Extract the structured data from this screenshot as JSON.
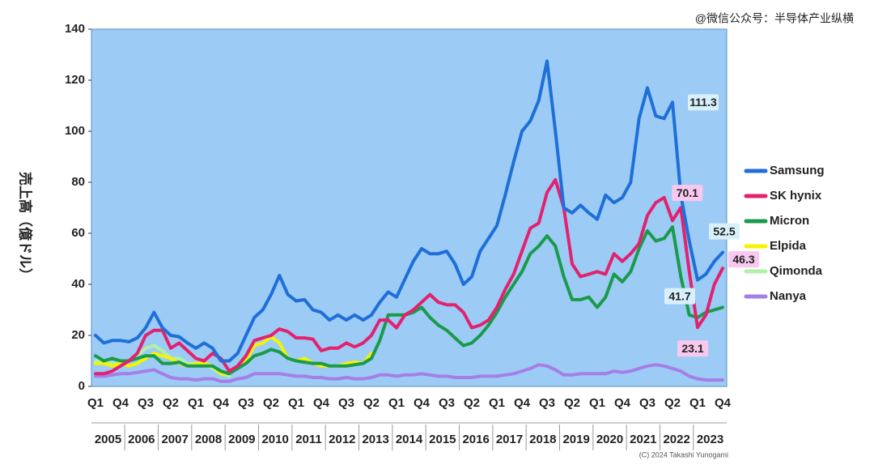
{
  "chart_data": {
    "type": "line",
    "y_label": "売上高（億ドル）",
    "watermark": "@微信公众号：半导体产业纵横",
    "credit": "(C) 2024 Takashi Yunogami",
    "background": "#9ccbf6",
    "ylim": [
      0,
      140
    ],
    "yticks": [
      0,
      20,
      40,
      60,
      80,
      100,
      120,
      140
    ],
    "grid": false,
    "categories": [
      "Q1",
      null,
      null,
      "Q4",
      null,
      null,
      "Q3",
      null,
      null,
      "Q2",
      null,
      null,
      "Q1",
      null,
      null,
      "Q4",
      null,
      null,
      "Q3",
      null,
      null,
      "Q2",
      null,
      null,
      "Q1",
      null,
      null,
      "Q4",
      null,
      null,
      "Q3",
      null,
      null,
      "Q2",
      null,
      null,
      "Q1",
      null,
      null,
      "Q4",
      null,
      null,
      "Q3",
      null,
      null,
      "Q2",
      null,
      null,
      "Q1",
      null,
      null,
      "Q4",
      null,
      null,
      "Q3",
      null,
      null,
      "Q2",
      null,
      null,
      "Q1",
      null,
      null,
      "Q4",
      null,
      null,
      "Q3",
      null,
      null,
      "Q2",
      null,
      null,
      "Q1",
      null,
      null,
      "Q4"
    ],
    "years": [
      "2005",
      "2006",
      "2007",
      "2008",
      "2009",
      "2010",
      "2011",
      "2012",
      "2013",
      "2014",
      "2015",
      "2016",
      "2017",
      "2018",
      "2019",
      "2020",
      "2021",
      "2022",
      "2023"
    ],
    "series": [
      {
        "name": "Samsung",
        "color": "#1f6fd8",
        "label_color": "#d8f0fb",
        "values": [
          20,
          17,
          18,
          18,
          17.5,
          19,
          23,
          29,
          23,
          20,
          19.5,
          17,
          15,
          17,
          15,
          10,
          10,
          13,
          20,
          27,
          30,
          36,
          43.5,
          36,
          33.5,
          34,
          30,
          29,
          26,
          28,
          26,
          28,
          26,
          28,
          33,
          37,
          35,
          42,
          49,
          54,
          52,
          52,
          53,
          48,
          40,
          43,
          53,
          58,
          63,
          75,
          88,
          100,
          104,
          112,
          127.5,
          100,
          70,
          68,
          71,
          68,
          65.5,
          75,
          72,
          74,
          80,
          105,
          117,
          106,
          105,
          111.3,
          75,
          57,
          41.7,
          44,
          49,
          52.5
        ],
        "value_labels": [
          null,
          null,
          null,
          null,
          null,
          null,
          null,
          null,
          null,
          null,
          null,
          null,
          null,
          null,
          null,
          null,
          null,
          null,
          null,
          null,
          null,
          null,
          null,
          null,
          null,
          null,
          null,
          null,
          null,
          null,
          null,
          null,
          null,
          null,
          null,
          null,
          null,
          null,
          null,
          null,
          null,
          null,
          null,
          null,
          null,
          null,
          null,
          null,
          null,
          null,
          null,
          null,
          null,
          null,
          null,
          null,
          null,
          null,
          null,
          null,
          null,
          null,
          null,
          null,
          null,
          null,
          null,
          null,
          null,
          "111.3",
          null,
          null,
          "41.7",
          null,
          null,
          "52.5"
        ]
      },
      {
        "name": "SK hynix",
        "color": "#e2226e",
        "label_color": "#f8c8ee",
        "values": [
          5,
          5,
          6,
          8,
          10,
          13,
          20,
          22,
          22,
          15,
          17,
          14,
          11,
          10,
          13,
          11,
          6,
          8,
          12,
          18,
          19,
          20,
          22.5,
          21.5,
          19,
          19,
          18.5,
          14,
          15,
          15,
          17,
          15.5,
          17,
          20,
          26,
          26,
          23,
          28,
          30,
          33,
          36,
          33,
          32,
          32,
          29,
          23,
          24,
          26,
          31,
          38,
          44,
          53,
          62,
          64,
          76,
          81,
          70,
          48,
          43,
          44,
          45,
          44,
          52,
          49,
          52,
          56,
          67,
          72,
          74,
          65,
          70.1,
          45,
          23.1,
          28,
          40,
          46.3
        ],
        "value_labels": [
          null,
          null,
          null,
          null,
          null,
          null,
          null,
          null,
          null,
          null,
          null,
          null,
          null,
          null,
          null,
          null,
          null,
          null,
          null,
          null,
          null,
          null,
          null,
          null,
          null,
          null,
          null,
          null,
          null,
          null,
          null,
          null,
          null,
          null,
          null,
          null,
          null,
          null,
          null,
          null,
          null,
          null,
          null,
          null,
          null,
          null,
          null,
          null,
          null,
          null,
          null,
          null,
          null,
          null,
          null,
          null,
          null,
          null,
          null,
          null,
          null,
          null,
          null,
          null,
          null,
          null,
          null,
          null,
          null,
          null,
          "70.1",
          null,
          "23.1",
          null,
          null,
          "46.3"
        ]
      },
      {
        "name": "Micron",
        "color": "#1b9a4b",
        "values": [
          12,
          10,
          11,
          10,
          10,
          11,
          12,
          12,
          9,
          9,
          9.5,
          8,
          8,
          8,
          8,
          6,
          5,
          7,
          9,
          12,
          13,
          14.5,
          13.5,
          11,
          10,
          9.5,
          9,
          9,
          8,
          8,
          8,
          8.5,
          9,
          11,
          18,
          28,
          28,
          28,
          29,
          31,
          27,
          24,
          22,
          19,
          16,
          17,
          20,
          24,
          29,
          35,
          40,
          45,
          52,
          55,
          59,
          55,
          43,
          34,
          34,
          35,
          31,
          35,
          44,
          41,
          45,
          54,
          61,
          57,
          58,
          62.5,
          43,
          28,
          27,
          29,
          30,
          31
        ]
      },
      {
        "name": "Elpida",
        "color": "#f4f400",
        "values": [
          9,
          9,
          8,
          9,
          8,
          9,
          11,
          13,
          12,
          11,
          9,
          8,
          9,
          9,
          8,
          5,
          5,
          7,
          10,
          16,
          17,
          19.5,
          17,
          11,
          10,
          11,
          9,
          8,
          8,
          8,
          9,
          9.5,
          9,
          13,
          null,
          null,
          null,
          null,
          null,
          null,
          null,
          null,
          null,
          null,
          null,
          null,
          null,
          null,
          null,
          null,
          null,
          null,
          null,
          null,
          null,
          null,
          null,
          null,
          null,
          null,
          null,
          null,
          null,
          null,
          null,
          null,
          null,
          null,
          null,
          null,
          null,
          null,
          null,
          null,
          null,
          null
        ]
      },
      {
        "name": "Qimonda",
        "color": "#b2f0a6",
        "values": [
          10,
          10,
          9,
          9,
          10,
          12,
          15,
          16,
          14,
          11,
          11,
          9,
          9,
          9,
          7,
          5,
          4,
          null,
          null,
          null,
          null,
          null,
          null,
          null,
          null,
          null,
          null,
          null,
          null,
          null,
          null,
          null,
          null,
          null,
          null,
          null,
          null,
          null,
          null,
          null,
          null,
          null,
          null,
          null,
          null,
          null,
          null,
          null,
          null,
          null,
          null,
          null,
          null,
          null,
          null,
          null,
          null,
          null,
          null,
          null,
          null,
          null,
          null,
          null,
          null,
          null,
          null,
          null,
          null,
          null,
          null,
          null,
          null,
          null,
          null,
          null
        ]
      },
      {
        "name": "Nanya",
        "color": "#a57ee6",
        "values": [
          4,
          4,
          4.5,
          5,
          5,
          5.5,
          6,
          6.5,
          5,
          3.5,
          3,
          3,
          2.5,
          3,
          3,
          2,
          2,
          3,
          3.5,
          5,
          5,
          5,
          5,
          4.5,
          4,
          4,
          3.5,
          3.5,
          3,
          3,
          3.5,
          3,
          3,
          3.5,
          4.5,
          4.5,
          4,
          4.5,
          4.5,
          5,
          4.5,
          4,
          4,
          3.5,
          3.5,
          3.5,
          4,
          4,
          4,
          4.5,
          5,
          6,
          7,
          8.5,
          8,
          6.5,
          4.5,
          4.5,
          5,
          5,
          5,
          5,
          6,
          5.5,
          6,
          7,
          8,
          8.5,
          8,
          7,
          6,
          4,
          3,
          2.5,
          2.5,
          2.5
        ]
      }
    ]
  }
}
